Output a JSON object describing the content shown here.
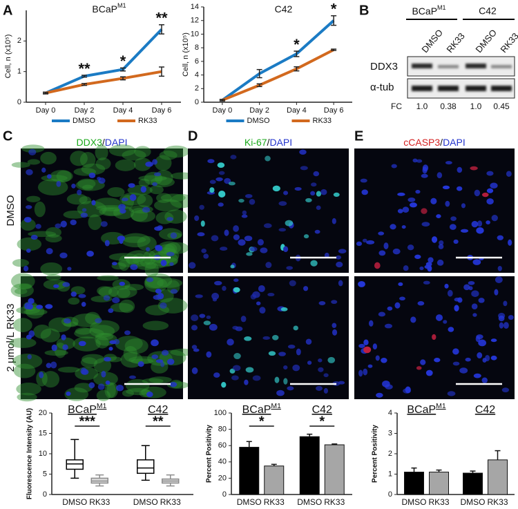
{
  "panel_letters": [
    "A",
    "B",
    "C",
    "D",
    "E"
  ],
  "blot": {
    "groups": [
      {
        "name": "BCaP",
        "name_sup": "M1"
      },
      {
        "name": "C42"
      }
    ],
    "lanes": [
      "DMSO",
      "RK33",
      "DMSO",
      "RK33"
    ],
    "rows": [
      "DDX3",
      "α-tub"
    ],
    "fc_label": "FC",
    "fc": [
      "1.0",
      "0.38",
      "1.0",
      "0.45"
    ]
  },
  "images": {
    "rows": [
      "DMSO",
      "2 μmol/L RK33"
    ],
    "columns": [
      {
        "stain": "DDX3",
        "separator": "/",
        "counterstain": "DAPI",
        "color": "#1aa81a"
      },
      {
        "stain": "Ki-67",
        "separator": "/",
        "counterstain": "DAPI",
        "color": "#1aa81a"
      },
      {
        "stain": "cCASP3",
        "separator": "/",
        "counterstain": "DAPI",
        "color": "#d42020"
      }
    ]
  },
  "chart_data": [
    {
      "type": "line",
      "title": "BCaP",
      "title_sup": "M1",
      "ylabel": "Cell, n (x10⁵)",
      "categories": [
        "Day 0",
        "Day 2",
        "Day 4",
        "Day 6"
      ],
      "ylim": [
        0,
        3
      ],
      "yticks": [
        0,
        1,
        2
      ],
      "series": [
        {
          "name": "DMSO",
          "color": "#1b7bc4",
          "values": [
            0.3,
            0.85,
            1.07,
            2.38
          ],
          "errors": [
            0.03,
            0.03,
            0.05,
            0.15
          ]
        },
        {
          "name": "RK33",
          "color": "#d2691e",
          "values": [
            0.3,
            0.58,
            0.78,
            1.0
          ],
          "errors": [
            0.02,
            0.03,
            0.05,
            0.15
          ]
        }
      ],
      "annotations": [
        {
          "x": "Day 2",
          "text": "**"
        },
        {
          "x": "Day 4",
          "text": "*"
        },
        {
          "x": "Day 6",
          "text": "**"
        }
      ]
    },
    {
      "type": "line",
      "title": "C42",
      "ylabel": "Cell, n (x10⁵)",
      "categories": [
        "Day 0",
        "Day 2",
        "Day 4",
        "Day 6"
      ],
      "ylim": [
        0,
        14
      ],
      "yticks": [
        0,
        2,
        4,
        6,
        8,
        10,
        12,
        14
      ],
      "series": [
        {
          "name": "DMSO",
          "color": "#1b7bc4",
          "values": [
            0.3,
            4.2,
            7.1,
            12.0
          ],
          "errors": [
            0.1,
            0.6,
            0.4,
            0.7
          ]
        },
        {
          "name": "RK33",
          "color": "#d2691e",
          "values": [
            0.3,
            2.5,
            4.9,
            7.7
          ],
          "errors": [
            0.1,
            0.2,
            0.3,
            0.1
          ]
        }
      ],
      "annotations": [
        {
          "x": "Day 4",
          "text": "*"
        },
        {
          "x": "Day 6",
          "text": "*"
        }
      ]
    },
    {
      "type": "box",
      "ylabel": "Fluorescence Intensity (AU)",
      "ylim": [
        0,
        20
      ],
      "yticks": [
        0,
        5,
        10,
        15,
        20
      ],
      "groups": [
        {
          "name": "BCaP",
          "name_sup": "M1",
          "annotation": "***"
        },
        {
          "name": "C42",
          "annotation": "**"
        }
      ],
      "series": [
        {
          "name": "DMSO",
          "color": "#000000",
          "fill": "#ffffff",
          "boxes": [
            {
              "min": 4.0,
              "q1": 6.2,
              "median": 7.5,
              "q3": 8.5,
              "max": 13.5
            },
            {
              "min": 3.5,
              "q1": 5.2,
              "median": 6.5,
              "q3": 8.5,
              "max": 12.0
            }
          ]
        },
        {
          "name": "RK33",
          "color": "#8c8c8c",
          "fill": "#d9d9d9",
          "boxes": [
            {
              "min": 2.1,
              "q1": 2.8,
              "median": 3.3,
              "q3": 4.0,
              "max": 4.8
            },
            {
              "min": 2.1,
              "q1": 2.8,
              "median": 3.3,
              "q3": 3.8,
              "max": 4.8
            }
          ]
        }
      ]
    },
    {
      "type": "bar",
      "ylabel": "Percent Positivity",
      "ylim": [
        0,
        100
      ],
      "yticks": [
        0,
        20,
        40,
        60,
        80,
        100
      ],
      "groups": [
        {
          "name": "BCaP",
          "name_sup": "M1",
          "annotation": "*"
        },
        {
          "name": "C42",
          "annotation": "*"
        }
      ],
      "series": [
        {
          "name": "DMSO",
          "color": "#000000",
          "values": [
            58,
            71
          ],
          "errors": [
            7,
            3
          ]
        },
        {
          "name": "RK33",
          "color": "#a6a6a6",
          "values": [
            35,
            61
          ],
          "errors": [
            2,
            1
          ]
        }
      ]
    },
    {
      "type": "bar",
      "ylabel": "Percent Positivity",
      "ylim": [
        0,
        4
      ],
      "yticks": [
        0,
        1,
        2,
        3,
        4
      ],
      "groups": [
        {
          "name": "BCaP",
          "name_sup": "M1"
        },
        {
          "name": "C42"
        }
      ],
      "series": [
        {
          "name": "DMSO",
          "color": "#000000",
          "values": [
            1.1,
            1.05
          ],
          "errors": [
            0.2,
            0.1
          ]
        },
        {
          "name": "RK33",
          "color": "#a6a6a6",
          "values": [
            1.1,
            1.7
          ],
          "errors": [
            0.1,
            0.45
          ]
        }
      ]
    }
  ]
}
